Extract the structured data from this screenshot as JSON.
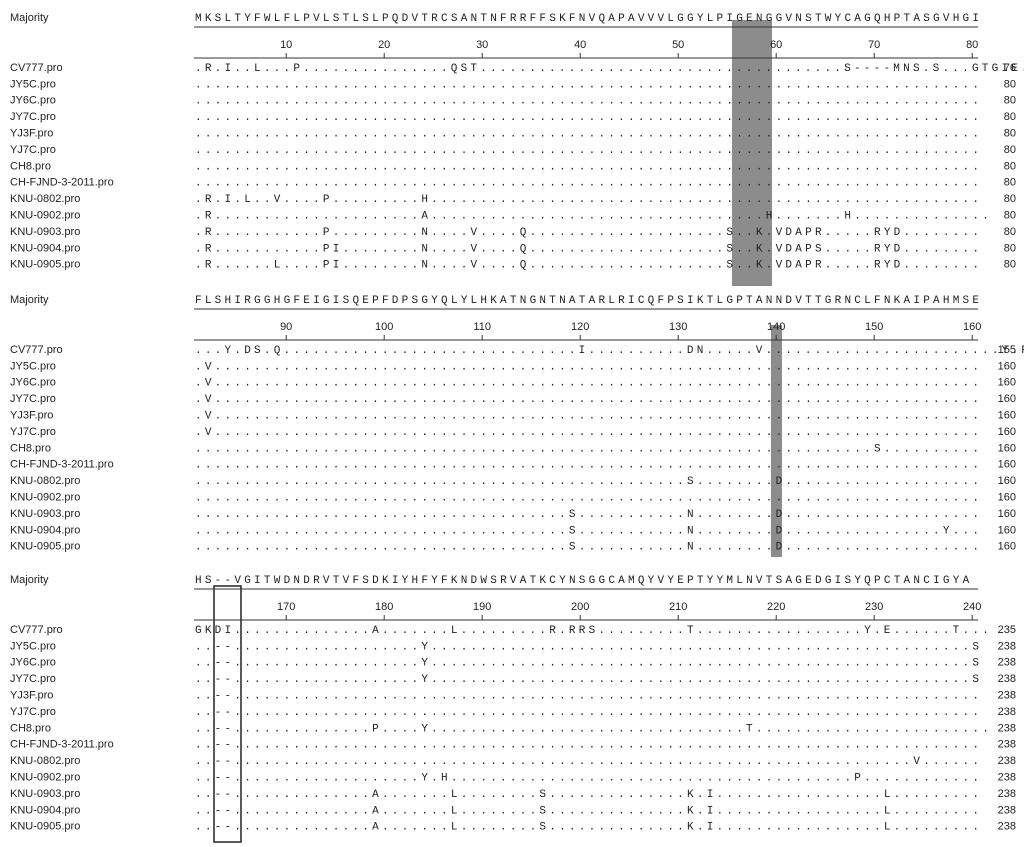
{
  "blocks": [
    {
      "majority_label": "Majority",
      "majority": "MKSLTYFWLFLPVLSTLSLPQDVTRCSANTNFRRFFSKFNVQAPAVVVLGGYLPIGENGGVNSTWYCAGQHPTASGVHGI",
      "ruler": [
        10,
        20,
        30,
        40,
        50,
        60,
        70,
        80
      ],
      "rows": [
        {
          "name": "CV777.pro",
          "seq": ".R.I..L...P...............QST.....................................S----MNS.S...GTGIE........",
          "end": 76
        },
        {
          "name": "JY5C.pro",
          "seq": "................................................................................",
          "end": 80
        },
        {
          "name": "JY6C.pro",
          "seq": "................................................................................",
          "end": 80
        },
        {
          "name": "JY7C.pro",
          "seq": "................................................................................",
          "end": 80
        },
        {
          "name": "YJ3F.pro",
          "seq": "................................................................................",
          "end": 80
        },
        {
          "name": "YJ7C.pro",
          "seq": "................................................................................",
          "end": 80
        },
        {
          "name": "CH8.pro",
          "seq": "................................................................................",
          "end": 80
        },
        {
          "name": "CH-FJND-3-2011.pro",
          "seq": "................................................................................",
          "end": 80
        },
        {
          "name": "KNU-0802.pro",
          "seq": ".R.I.L..V....P.........H........................................................",
          "end": 80
        },
        {
          "name": "KNU-0902.pro",
          "seq": ".R.....................A..................................H.......H..............",
          "end": 80
        },
        {
          "name": "KNU-0903.pro",
          "seq": ".R...........P.........N....V....Q....................S..K.VDAPR.....RYD........",
          "end": 80
        },
        {
          "name": "KNU-0904.pro",
          "seq": ".R...........PI........N....V....Q....................S..K.VDAPS.....RYD........",
          "end": 80
        },
        {
          "name": "KNU-0905.pro",
          "seq": ".R......L....PI........N....V....Q....................S..K.VDAPR.....RYD........",
          "end": 80
        }
      ]
    },
    {
      "majority_label": "Majority",
      "majority": "FLSHIRGGHGFEIGISQEPFDPSGYQLYLHKATNGNTNATARLRICQFPSIKTLGPTANNDVTTGRNCLFNKAIPAHMSE",
      "ruler": [
        90,
        100,
        110,
        120,
        130,
        140,
        150,
        160
      ],
      "rows": [
        {
          "name": "CV777.pro",
          "seq": "...Y.DS.Q..............................I..........DN.....V........................Y.RD",
          "end": 155
        },
        {
          "name": "JY5C.pro",
          "seq": ".V..............................................................................",
          "end": 160
        },
        {
          "name": "JY6C.pro",
          "seq": ".V..............................................................................",
          "end": 160
        },
        {
          "name": "JY7C.pro",
          "seq": ".V..............................................................................",
          "end": 160
        },
        {
          "name": "YJ3F.pro",
          "seq": ".V..............................................................................",
          "end": 160
        },
        {
          "name": "YJ7C.pro",
          "seq": ".V..............................................................................",
          "end": 160
        },
        {
          "name": "CH8.pro",
          "seq": ".....................................................................S..........",
          "end": 160
        },
        {
          "name": "CH-FJND-3-2011.pro",
          "seq": "................................................................................",
          "end": 160
        },
        {
          "name": "KNU-0802.pro",
          "seq": "..................................................S........D....................",
          "end": 160
        },
        {
          "name": "KNU-0902.pro",
          "seq": "................................................................................",
          "end": 160
        },
        {
          "name": "KNU-0903.pro",
          "seq": "......................................S...........N........D....................",
          "end": 160
        },
        {
          "name": "KNU-0904.pro",
          "seq": "......................................S...........N........D................Y...",
          "end": 160
        },
        {
          "name": "KNU-0905.pro",
          "seq": "......................................S...........N........D....................",
          "end": 160
        }
      ]
    },
    {
      "majority_label": "Majority",
      "majority": "HS--VGITWDNDRVTVFSDKIYHFYFKNDWSRVATKCYNSGGCAMQYVYEPTYYMLNVTSAGEDGISYQPCTANCIGYA",
      "ruler": [
        170,
        180,
        190,
        200,
        210,
        220,
        230,
        240
      ],
      "rows": [
        {
          "name": "CV777.pro",
          "seq": "GKDI..............A.......L.........R.RRS.........T.................Y.E......T...",
          "end": 235
        },
        {
          "name": "JY5C.pro",
          "seq": "..--...................Y.......................................................S",
          "end": 238
        },
        {
          "name": "JY6C.pro",
          "seq": "..--...................Y.......................................................S",
          "end": 238
        },
        {
          "name": "JY7C.pro",
          "seq": "..--...................Y.......................................................S",
          "end": 238
        },
        {
          "name": "YJ3F.pro",
          "seq": "..--............................................................................",
          "end": 238
        },
        {
          "name": "YJ7C.pro",
          "seq": "..--............................................................................",
          "end": 238
        },
        {
          "name": "CH8.pro",
          "seq": "..--..............P....Y................................T........................",
          "end": 238
        },
        {
          "name": "CH-FJND-3-2011.pro",
          "seq": "..--............................................................................",
          "end": 238
        },
        {
          "name": "KNU-0802.pro",
          "seq": "..--.....................................................................V......",
          "end": 238
        },
        {
          "name": "KNU-0902.pro",
          "seq": "..--...................Y.H.........................................P............",
          "end": 238
        },
        {
          "name": "KNU-0903.pro",
          "seq": "..--..............A.......L........S..............K.I.................L.........",
          "end": 238
        },
        {
          "name": "KNU-0904.pro",
          "seq": "..--..............A.......L........S..............K.I.................L.........",
          "end": 238
        },
        {
          "name": "KNU-0905.pro",
          "seq": "..--..............A.......L........S..............K.I.................L.........",
          "end": 238
        }
      ]
    }
  ]
}
